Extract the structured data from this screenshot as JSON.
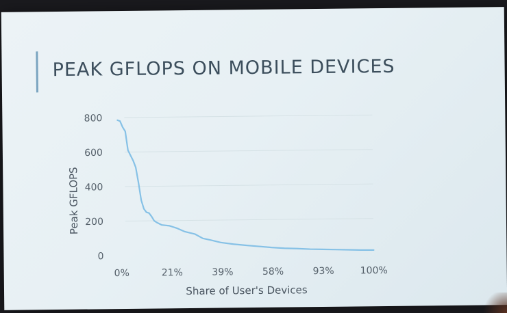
{
  "slide": {
    "title": "PEAK GFLOPS ON MOBILE DEVICES"
  },
  "colors": {
    "line": "#86c1e6",
    "grid": "#d6e2e6",
    "title": "#3c4e5c",
    "accent": "#7aa4c0"
  },
  "chart_data": {
    "type": "line",
    "title": "PEAK GFLOPS ON MOBILE DEVICES",
    "xlabel": "Share of User's Devices",
    "ylabel": "Peak GFLOPS",
    "ylim": [
      0,
      800
    ],
    "yticks": [
      0,
      200,
      400,
      600,
      800
    ],
    "xtick_labels": [
      "0%",
      "21%",
      "39%",
      "58%",
      "93%",
      "100%"
    ],
    "grid": true,
    "legend": "none",
    "series": [
      {
        "x": [
          0,
          1,
          2,
          3,
          4,
          5,
          6,
          7,
          8,
          9,
          10,
          11,
          12,
          13,
          14,
          15,
          17,
          20,
          23,
          26,
          30,
          33,
          36,
          40,
          45,
          50,
          55,
          60,
          65,
          70,
          75,
          80,
          85,
          90,
          95,
          100
        ],
        "values": [
          785,
          780,
          745,
          720,
          610,
          580,
          550,
          510,
          420,
          320,
          270,
          250,
          245,
          225,
          200,
          190,
          175,
          170,
          155,
          135,
          120,
          95,
          85,
          70,
          60,
          52,
          45,
          38,
          33,
          30,
          26,
          24,
          22,
          20,
          18,
          17
        ]
      }
    ]
  }
}
